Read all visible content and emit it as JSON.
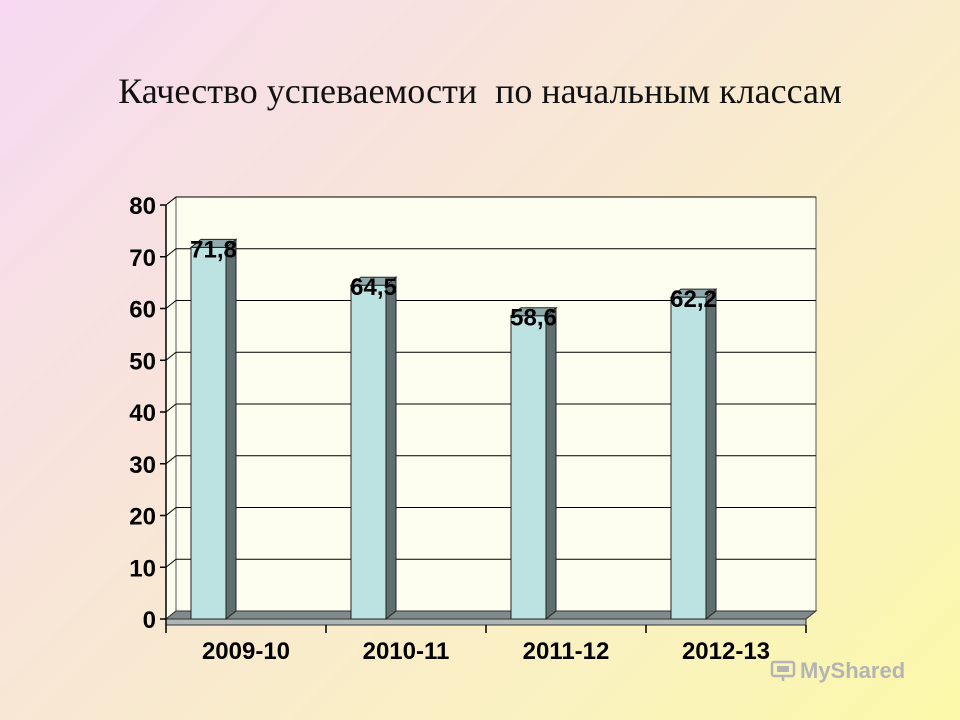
{
  "slide": {
    "title": "Качество успеваемости  по начальным классам"
  },
  "chart_data": {
    "type": "bar",
    "title": "",
    "xlabel": "",
    "ylabel": "",
    "categories": [
      "2009-10",
      "2010-11",
      "2011-12",
      "2012-13"
    ],
    "values": [
      71.8,
      64.5,
      58.6,
      62.2
    ],
    "value_labels": [
      "71,8",
      "64,5",
      "58,6",
      "62,2"
    ],
    "ylim": [
      0,
      80
    ],
    "yticks": [
      0,
      10,
      20,
      30,
      40,
      50,
      60,
      70,
      80
    ],
    "grid": true,
    "legend": "none",
    "style": "3d",
    "colors": {
      "bar_front": "#bde2e2",
      "bar_side": "#5f6e6e",
      "bar_top": "#8faaaa",
      "floor": "#7f8a8a",
      "wall": "#fdfdf0",
      "gridline": "#000000"
    }
  },
  "watermark": {
    "text": "MyShared"
  }
}
